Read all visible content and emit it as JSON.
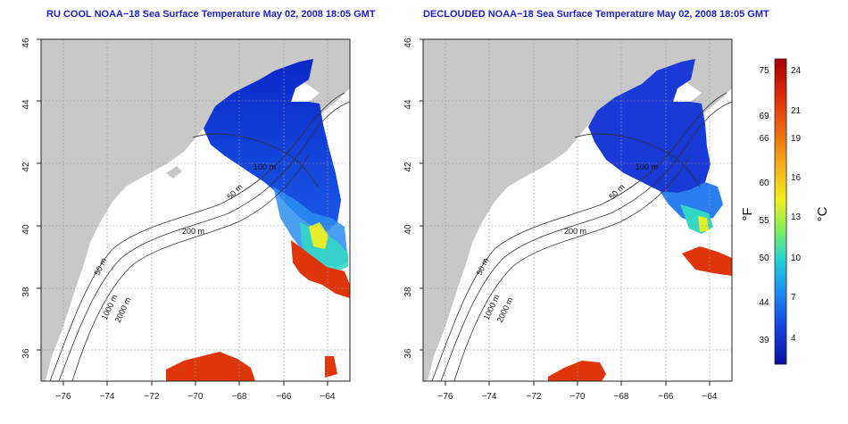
{
  "maps": [
    {
      "title": "RU COOL NOAA−18 Sea Surface Temperature May 02, 2008 18:05 GMT",
      "contour_labels": [
        "50 m",
        "200 m",
        "100 m",
        "50 m",
        "1000 m",
        "2000 m"
      ]
    },
    {
      "title": "DECLOUDED NOAA−18 Sea Surface Temperature May 02, 2008 18:05 GMT",
      "contour_labels": [
        "50 m",
        "200 m",
        "100 m",
        "50 m",
        "1000 m",
        "2000 m"
      ]
    }
  ],
  "axes": {
    "x_ticks": [
      "−76",
      "−74",
      "−72",
      "−70",
      "−68",
      "−66",
      "−64"
    ],
    "y_ticks": [
      "46",
      "44",
      "42",
      "40",
      "38",
      "36"
    ],
    "lon_range": [
      -77,
      -63
    ],
    "lat_range": [
      35,
      46
    ]
  },
  "colorbar": {
    "f_unit": "°F",
    "c_unit": "°C",
    "f_ticks": [
      "75",
      "69",
      "66",
      "60",
      "55",
      "50",
      "44",
      "39"
    ],
    "c_ticks": [
      "24",
      "21",
      "19",
      "16",
      "13",
      "10",
      "7",
      "4"
    ],
    "gradient_colors": [
      "#a50000",
      "#e02a0a",
      "#f06a10",
      "#f4b41a",
      "#f2ee1c",
      "#7ef05a",
      "#22d2d8",
      "#1a8ef4",
      "#1442e0",
      "#0a10a0"
    ]
  },
  "colors": {
    "land": "#c8c8c8",
    "ocean": "#ffffff",
    "title": "#1d1dd6",
    "cold": "#1a3ad8",
    "warm": "#e0350a"
  }
}
